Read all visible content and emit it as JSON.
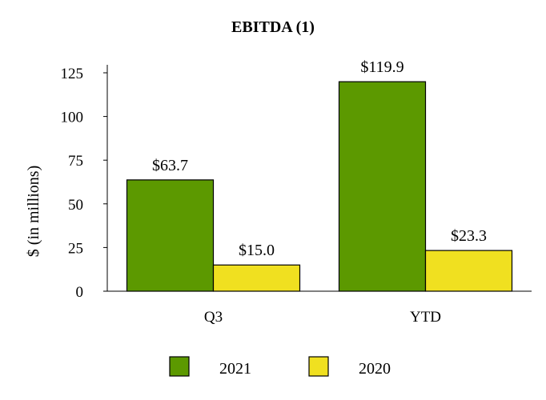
{
  "chart_data": {
    "type": "bar",
    "title": "EBITDA (1)",
    "xlabel": "",
    "ylabel": "$ (in millions)",
    "categories": [
      "Q3",
      "YTD"
    ],
    "series": [
      {
        "name": "2021",
        "values": [
          63.7,
          119.9
        ],
        "labels": [
          "$63.7",
          "$119.9"
        ],
        "color": "#5c9900"
      },
      {
        "name": "2020",
        "values": [
          15.0,
          23.3
        ],
        "labels": [
          "$15.0",
          "$23.3"
        ],
        "color": "#f0e020"
      }
    ],
    "ylim": [
      0,
      125
    ],
    "yticks": [
      0,
      25,
      50,
      75,
      100,
      125
    ],
    "grid": false,
    "legend": "bottom"
  }
}
